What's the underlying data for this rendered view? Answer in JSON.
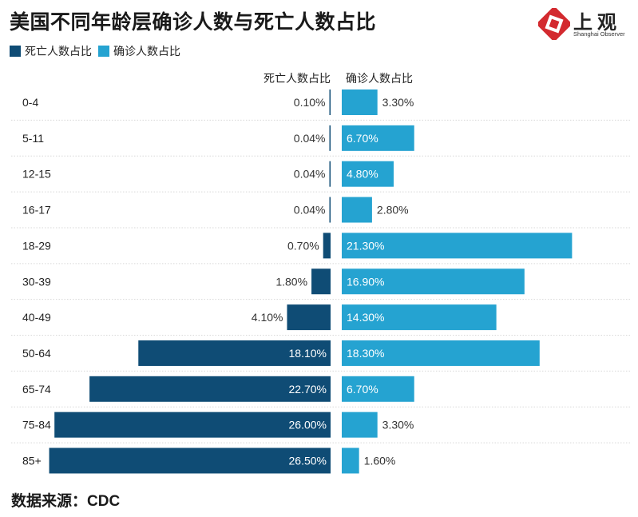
{
  "title": "美国不同年龄层确诊人数与死亡人数占比",
  "logo": {
    "text": "上观",
    "subtext": "Shanghai Observer"
  },
  "source": "数据来源：CDC",
  "colors": {
    "deaths": "#0f4c75",
    "cases": "#25a3d1",
    "grid": "#d8d8d8"
  },
  "chart_data": {
    "type": "bar",
    "orientation": "horizontal-diverging",
    "categories": [
      "0-4",
      "5-11",
      "12-15",
      "16-17",
      "18-29",
      "30-39",
      "40-49",
      "50-64",
      "65-74",
      "75-84",
      "85+"
    ],
    "series": [
      {
        "name": "死亡人数占比",
        "values": [
          0.1,
          0.04,
          0.04,
          0.04,
          0.7,
          1.8,
          4.1,
          18.1,
          22.7,
          26.0,
          26.5
        ],
        "labels": [
          "0.10%",
          "0.04%",
          "0.04%",
          "0.04%",
          "0.70%",
          "1.80%",
          "4.10%",
          "18.10%",
          "22.70%",
          "26.00%",
          "26.50%"
        ]
      },
      {
        "name": "确诊人数占比",
        "values": [
          3.3,
          6.7,
          4.8,
          2.8,
          21.3,
          16.9,
          14.3,
          18.3,
          6.7,
          3.3,
          1.6
        ],
        "labels": [
          "3.30%",
          "6.70%",
          "4.80%",
          "2.80%",
          "21.30%",
          "16.90%",
          "14.30%",
          "18.30%",
          "6.70%",
          "3.30%",
          "1.60%"
        ]
      }
    ],
    "unit": "%",
    "legend": "top-left"
  }
}
